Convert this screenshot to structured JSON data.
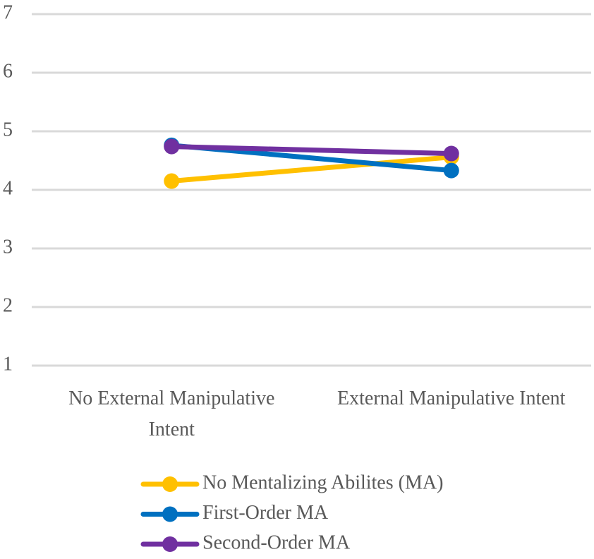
{
  "chart_data": {
    "type": "line",
    "categories": [
      "No External Manipulative Intent",
      "External Manipulative Intent"
    ],
    "series": [
      {
        "name": "No Mentalizing Abilites (MA)",
        "color": "#ffc000",
        "values": [
          4.15,
          4.56
        ]
      },
      {
        "name": "First-Order MA",
        "color": "#0070c0",
        "values": [
          4.76,
          4.33
        ]
      },
      {
        "name": "Second-Order MA",
        "color": "#7030a0",
        "values": [
          4.74,
          4.62
        ]
      }
    ],
    "ylim": [
      1,
      7
    ],
    "yticks": [
      1,
      2,
      3,
      4,
      5,
      6,
      7
    ],
    "grid": true,
    "legend": "bottom"
  }
}
